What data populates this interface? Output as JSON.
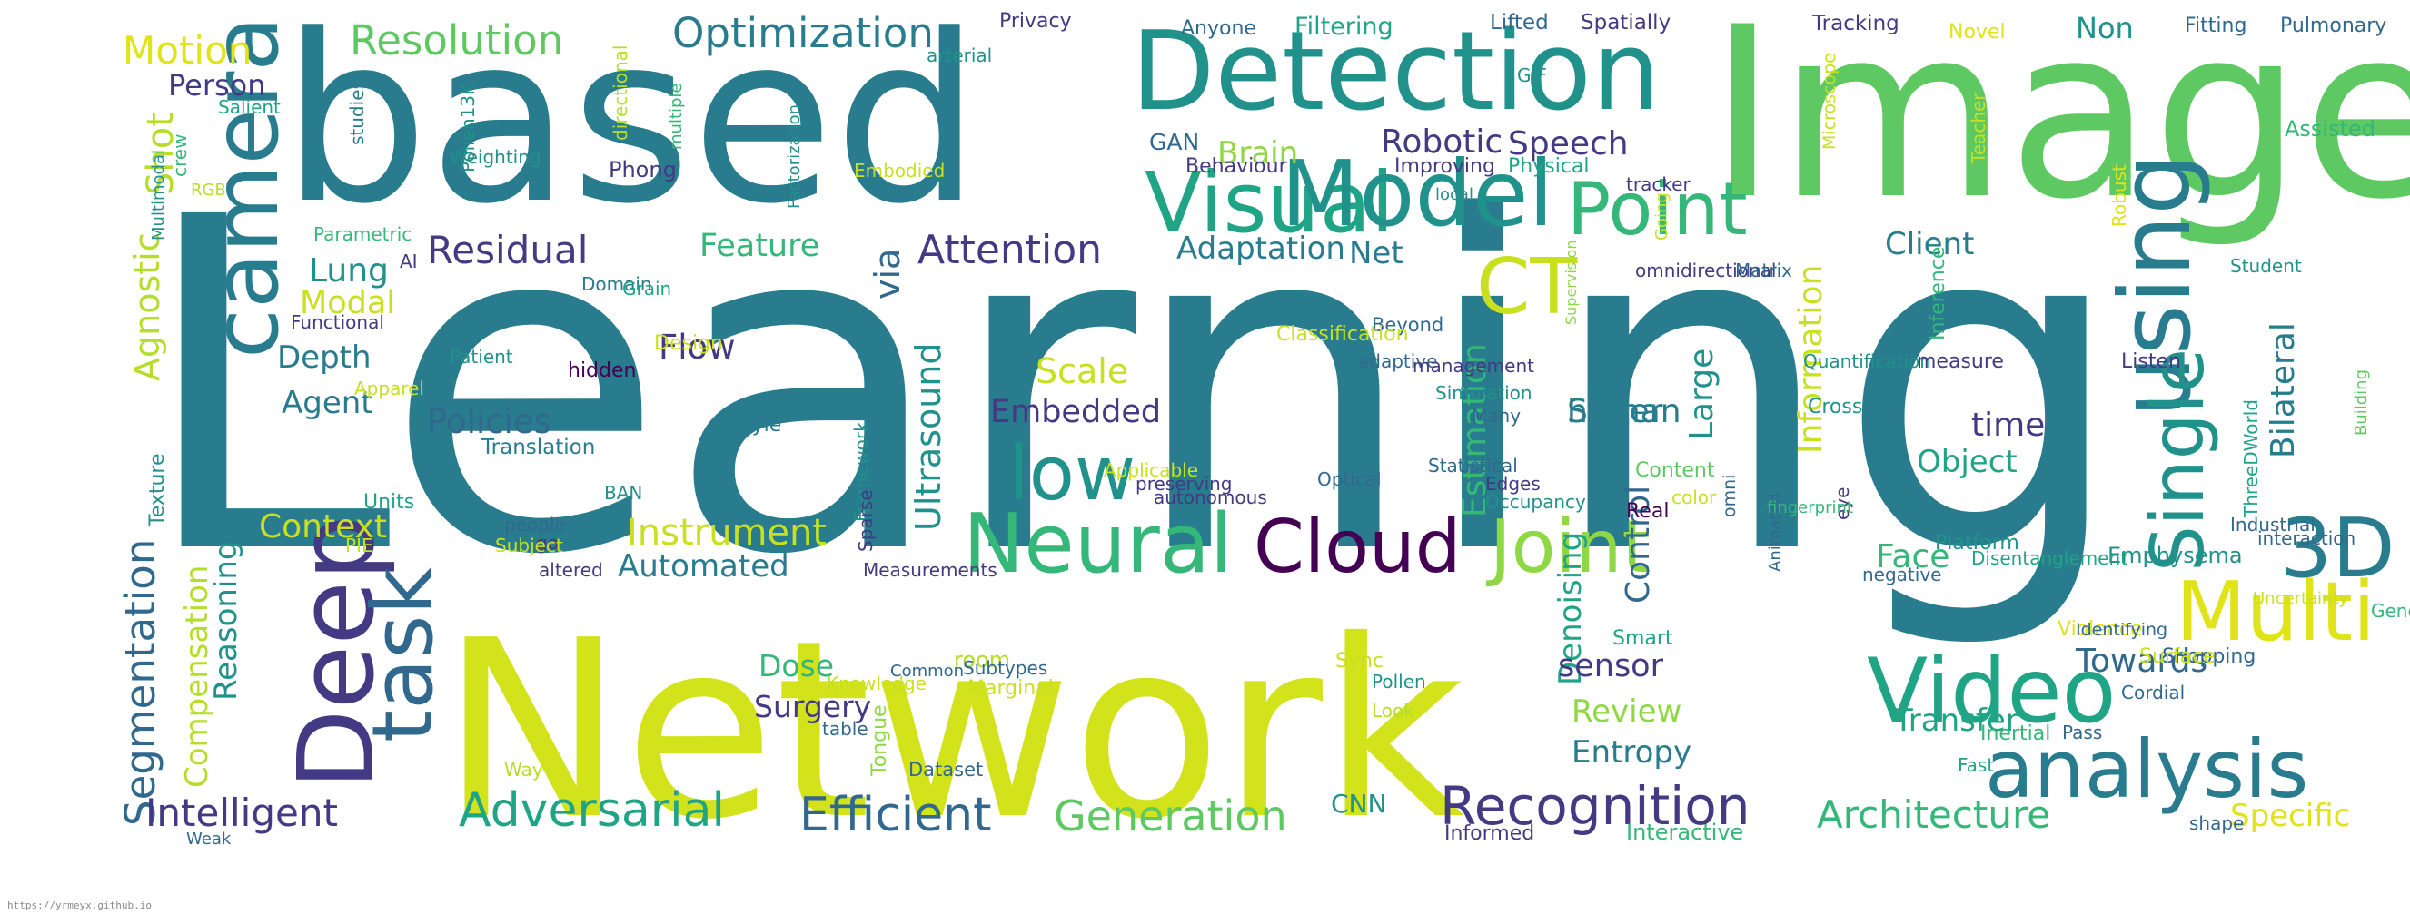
{
  "footer": {
    "url": "https://yrmeyx.github.io"
  },
  "palette": [
    "#440154",
    "#443a83",
    "#31688e",
    "#287c8e",
    "#21918c",
    "#20a486",
    "#35b779",
    "#5ec962",
    "#8fd744",
    "#c8e020",
    "#dfe318"
  ],
  "words": [
    {
      "text": "Learning",
      "color": "#287c8e"
    },
    {
      "text": "Network",
      "color": "#d2e21b"
    },
    {
      "text": "Image",
      "color": "#5ec962"
    },
    {
      "text": "based",
      "color": "#287c8e"
    },
    {
      "text": "Detection",
      "color": "#21918c"
    },
    {
      "text": "Visual",
      "color": "#20a486"
    },
    {
      "text": "Model",
      "color": "#21918c"
    },
    {
      "text": "Point",
      "color": "#35b779"
    },
    {
      "text": "camera",
      "color": "#287c8e"
    },
    {
      "text": "CT",
      "color": "#c8e020"
    },
    {
      "text": "using",
      "color": "#287c8e"
    },
    {
      "text": "Single",
      "color": "#21918c"
    },
    {
      "text": "3D",
      "color": "#287c8e"
    },
    {
      "text": "Multi",
      "color": "#dfe318"
    },
    {
      "text": "Video",
      "color": "#20a486"
    },
    {
      "text": "analysis",
      "color": "#287c8e"
    },
    {
      "text": "Deep",
      "color": "#443a83"
    },
    {
      "text": "task",
      "color": "#31688e"
    },
    {
      "text": "Neural",
      "color": "#35b779"
    },
    {
      "text": "Cloud",
      "color": "#440154"
    },
    {
      "text": "Joint",
      "color": "#8fd744"
    },
    {
      "text": "low",
      "color": "#21918c"
    },
    {
      "text": "Segmentation",
      "color": "#31688e"
    },
    {
      "text": "Recognition",
      "color": "#443a83"
    },
    {
      "text": "Adversarial",
      "color": "#20a486"
    },
    {
      "text": "Efficient",
      "color": "#31688e"
    },
    {
      "text": "Generation",
      "color": "#5ec962"
    },
    {
      "text": "Architecture",
      "color": "#35b779"
    },
    {
      "text": "Intelligent",
      "color": "#443a83"
    },
    {
      "text": "Resolution",
      "color": "#5ec962"
    },
    {
      "text": "Optimization",
      "color": "#287c8e"
    },
    {
      "text": "Motion",
      "color": "#dfe318"
    },
    {
      "text": "Person",
      "color": "#443a83"
    },
    {
      "text": "Shot",
      "color": "#b5de2b"
    },
    {
      "text": "Agnostic",
      "color": "#b5de2b"
    },
    {
      "text": "Residual",
      "color": "#443a83"
    },
    {
      "text": "Lung",
      "color": "#21918c"
    },
    {
      "text": "Modal",
      "color": "#c8e020"
    },
    {
      "text": "Depth",
      "color": "#287c8e"
    },
    {
      "text": "Agent",
      "color": "#287c8e"
    },
    {
      "text": "Policies",
      "color": "#31688e"
    },
    {
      "text": "Context",
      "color": "#c8e020"
    },
    {
      "text": "Compensation",
      "color": "#b5de2b"
    },
    {
      "text": "Reasoning",
      "color": "#21918c"
    },
    {
      "text": "Instrument",
      "color": "#c8e020"
    },
    {
      "text": "Automated",
      "color": "#287c8e"
    },
    {
      "text": "Attention",
      "color": "#443a83"
    },
    {
      "text": "Feature",
      "color": "#35b779"
    },
    {
      "text": "Flow",
      "color": "#443a83"
    },
    {
      "text": "via",
      "color": "#31688e"
    },
    {
      "text": "Ultrasound",
      "color": "#21918c"
    },
    {
      "text": "Embedded",
      "color": "#443a83"
    },
    {
      "text": "Scale",
      "color": "#c8e020"
    },
    {
      "text": "Adaptation",
      "color": "#287c8e"
    },
    {
      "text": "Net",
      "color": "#287c8e"
    },
    {
      "text": "Brain",
      "color": "#8fd744"
    },
    {
      "text": "Robotic",
      "color": "#443a83"
    },
    {
      "text": "Speech",
      "color": "#443a83"
    },
    {
      "text": "GAN",
      "color": "#31688e"
    },
    {
      "text": "Estimation",
      "color": "#35b779"
    },
    {
      "text": "human",
      "color": "#287c8e"
    },
    {
      "text": "Super",
      "color": "#287c8e"
    },
    {
      "text": "Control",
      "color": "#31688e"
    },
    {
      "text": "Large",
      "color": "#21918c"
    },
    {
      "text": "Information",
      "color": "#c8e020"
    },
    {
      "text": "Bilateral",
      "color": "#287c8e"
    },
    {
      "text": "Object",
      "color": "#20a486"
    },
    {
      "text": "time",
      "color": "#443a83"
    },
    {
      "text": "Client",
      "color": "#287c8e"
    },
    {
      "text": "Face",
      "color": "#35b779"
    },
    {
      "text": "Towards",
      "color": "#31688e"
    },
    {
      "text": "Transfer",
      "color": "#20a486"
    },
    {
      "text": "Entropy",
      "color": "#287c8e"
    },
    {
      "text": "Review",
      "color": "#8fd744"
    },
    {
      "text": "Denoising",
      "color": "#20a486"
    },
    {
      "text": "sensor",
      "color": "#443a83"
    },
    {
      "text": "Surgery",
      "color": "#443a83"
    },
    {
      "text": "Dose",
      "color": "#35b779"
    },
    {
      "text": "Specific",
      "color": "#dfe318"
    },
    {
      "text": "CNN",
      "color": "#21918c"
    },
    {
      "text": "Emphysema",
      "color": "#21918c"
    },
    {
      "text": "Platform",
      "color": "#21918c"
    },
    {
      "text": "Shopping",
      "color": "#31688e"
    },
    {
      "text": "Surface",
      "color": "#c8e020"
    },
    {
      "text": "Violence",
      "color": "#dfe318"
    },
    {
      "text": "Cordial",
      "color": "#31688e"
    },
    {
      "text": "Inertial",
      "color": "#35b779"
    },
    {
      "text": "Fast",
      "color": "#20a486"
    },
    {
      "text": "Pass",
      "color": "#31688e"
    },
    {
      "text": "shape",
      "color": "#31688e"
    },
    {
      "text": "Interactive",
      "color": "#35b779"
    },
    {
      "text": "Informed",
      "color": "#443a83"
    },
    {
      "text": "Smart",
      "color": "#20a486"
    },
    {
      "text": "Occupancy",
      "color": "#21918c"
    },
    {
      "text": "Edges",
      "color": "#443a83"
    },
    {
      "text": "Real",
      "color": "#440154"
    },
    {
      "text": "Content",
      "color": "#5ec962"
    },
    {
      "text": "Sync",
      "color": "#c8e020"
    },
    {
      "text": "Pollen",
      "color": "#21918c"
    },
    {
      "text": "Look",
      "color": "#b5de2b"
    },
    {
      "text": "room",
      "color": "#b5de2b"
    },
    {
      "text": "Marginal",
      "color": "#c8e020"
    },
    {
      "text": "Subtypes",
      "color": "#31688e"
    },
    {
      "text": "Knowledge",
      "color": "#c8e020"
    },
    {
      "text": "Common",
      "color": "#31688e"
    },
    {
      "text": "table",
      "color": "#31688e"
    },
    {
      "text": "Dataset",
      "color": "#31688e"
    },
    {
      "text": "Tongue",
      "color": "#8fd744"
    },
    {
      "text": "Way",
      "color": "#b5de2b"
    },
    {
      "text": "Weak",
      "color": "#31688e"
    },
    {
      "text": "Measurements",
      "color": "#443a83"
    },
    {
      "text": "altered",
      "color": "#443a83"
    },
    {
      "text": "go",
      "color": "#443a83"
    },
    {
      "text": "people",
      "color": "#31688e"
    },
    {
      "text": "BAN",
      "color": "#21918c"
    },
    {
      "text": "PIE",
      "color": "#c8e020"
    },
    {
      "text": "Subject",
      "color": "#c8e020"
    },
    {
      "text": "Units",
      "color": "#20a486"
    },
    {
      "text": "Texture",
      "color": "#21918c"
    },
    {
      "text": "Translation",
      "color": "#287c8e"
    },
    {
      "text": "Style",
      "color": "#287c8e"
    },
    {
      "text": "Apparel",
      "color": "#c8e020"
    },
    {
      "text": "Patient",
      "color": "#21918c"
    },
    {
      "text": "hidden",
      "color": "#440154"
    },
    {
      "text": "Design",
      "color": "#c8e020"
    },
    {
      "text": "Functional",
      "color": "#443a83"
    },
    {
      "text": "Domain",
      "color": "#287c8e"
    },
    {
      "text": "Grain",
      "color": "#20a486"
    },
    {
      "text": "AI",
      "color": "#443a83"
    },
    {
      "text": "Parametric",
      "color": "#35b779"
    },
    {
      "text": "Multimodal",
      "color": "#21918c"
    },
    {
      "text": "RGB",
      "color": "#b5de2b"
    },
    {
      "text": "crew",
      "color": "#35b779"
    },
    {
      "text": "Salient",
      "color": "#20a486"
    },
    {
      "text": "studies",
      "color": "#287c8e"
    },
    {
      "text": "Weighting",
      "color": "#21918c"
    },
    {
      "text": "Pollen13K",
      "color": "#21918c"
    },
    {
      "text": "directional",
      "color": "#b5de2b"
    },
    {
      "text": "multiple",
      "color": "#35b779"
    },
    {
      "text": "Phong",
      "color": "#443a83"
    },
    {
      "text": "Factorization",
      "color": "#21918c"
    },
    {
      "text": "Embodied",
      "color": "#c8e020"
    },
    {
      "text": "Privacy",
      "color": "#443a83"
    },
    {
      "text": "arterial",
      "color": "#21918c"
    },
    {
      "text": "Anyone",
      "color": "#31688e"
    },
    {
      "text": "Filtering",
      "color": "#20a486"
    },
    {
      "text": "Lifted",
      "color": "#31688e"
    },
    {
      "text": "Spatially",
      "color": "#443a83"
    },
    {
      "text": "GIF",
      "color": "#21918c"
    },
    {
      "text": "Tracking",
      "color": "#443a83"
    },
    {
      "text": "Novel",
      "color": "#dfe318"
    },
    {
      "text": "Non",
      "color": "#21918c"
    },
    {
      "text": "Fitting",
      "color": "#31688e"
    },
    {
      "text": "Pulmonary",
      "color": "#31688e"
    },
    {
      "text": "Microscope",
      "color": "#c8e020"
    },
    {
      "text": "Teacher",
      "color": "#c8e020"
    },
    {
      "text": "Assisted",
      "color": "#35b779"
    },
    {
      "text": "Behaviour",
      "color": "#443a83"
    },
    {
      "text": "Improving",
      "color": "#443a83"
    },
    {
      "text": "Physical",
      "color": "#20a486"
    },
    {
      "text": "tracker",
      "color": "#443a83"
    },
    {
      "text": "local",
      "color": "#21918c"
    },
    {
      "text": "Supervision",
      "color": "#8fd744"
    },
    {
      "text": "omnidirectional",
      "color": "#443a83"
    },
    {
      "text": "Going",
      "color": "#c8e020"
    },
    {
      "text": "Matrix",
      "color": "#31688e"
    },
    {
      "text": "Building",
      "color": "#5ec962"
    },
    {
      "text": "Beyond",
      "color": "#31688e"
    },
    {
      "text": "adaptive",
      "color": "#31688e"
    },
    {
      "text": "Student",
      "color": "#21918c"
    },
    {
      "text": "Listen",
      "color": "#443a83"
    },
    {
      "text": "Robust",
      "color": "#dfe318"
    },
    {
      "text": "management",
      "color": "#443a83"
    },
    {
      "text": "Simulation",
      "color": "#21918c"
    },
    {
      "text": "Quantification",
      "color": "#21918c"
    },
    {
      "text": "Cross",
      "color": "#21918c"
    },
    {
      "text": "measure",
      "color": "#443a83"
    },
    {
      "text": "Inference",
      "color": "#35b779"
    },
    {
      "text": "ThreeDWorld",
      "color": "#20a486"
    },
    {
      "text": "Classification",
      "color": "#c8e020"
    },
    {
      "text": "Framework",
      "color": "#21918c"
    },
    {
      "text": "Sparse",
      "color": "#443a83"
    },
    {
      "text": "Applicable",
      "color": "#c8e020"
    },
    {
      "text": "preserving",
      "color": "#443a83"
    },
    {
      "text": "autonomous",
      "color": "#443a83"
    },
    {
      "text": "Optical",
      "color": "#31688e"
    },
    {
      "text": "Statistical",
      "color": "#31688e"
    },
    {
      "text": "Many",
      "color": "#31688e"
    },
    {
      "text": "color",
      "color": "#c8e020"
    },
    {
      "text": "omni",
      "color": "#31688e"
    },
    {
      "text": "Animated",
      "color": "#31688e"
    },
    {
      "text": "eye",
      "color": "#443a83"
    },
    {
      "text": "negative",
      "color": "#31688e"
    },
    {
      "text": "fingerprint",
      "color": "#35b779"
    },
    {
      "text": "Industrial",
      "color": "#31688e"
    },
    {
      "text": "interaction",
      "color": "#31688e"
    },
    {
      "text": "Disentanglement",
      "color": "#20a486"
    },
    {
      "text": "Uncertainty",
      "color": "#c8e020"
    },
    {
      "text": "Generalized",
      "color": "#35b779"
    },
    {
      "text": "Identifying",
      "color": "#31688e"
    }
  ]
}
